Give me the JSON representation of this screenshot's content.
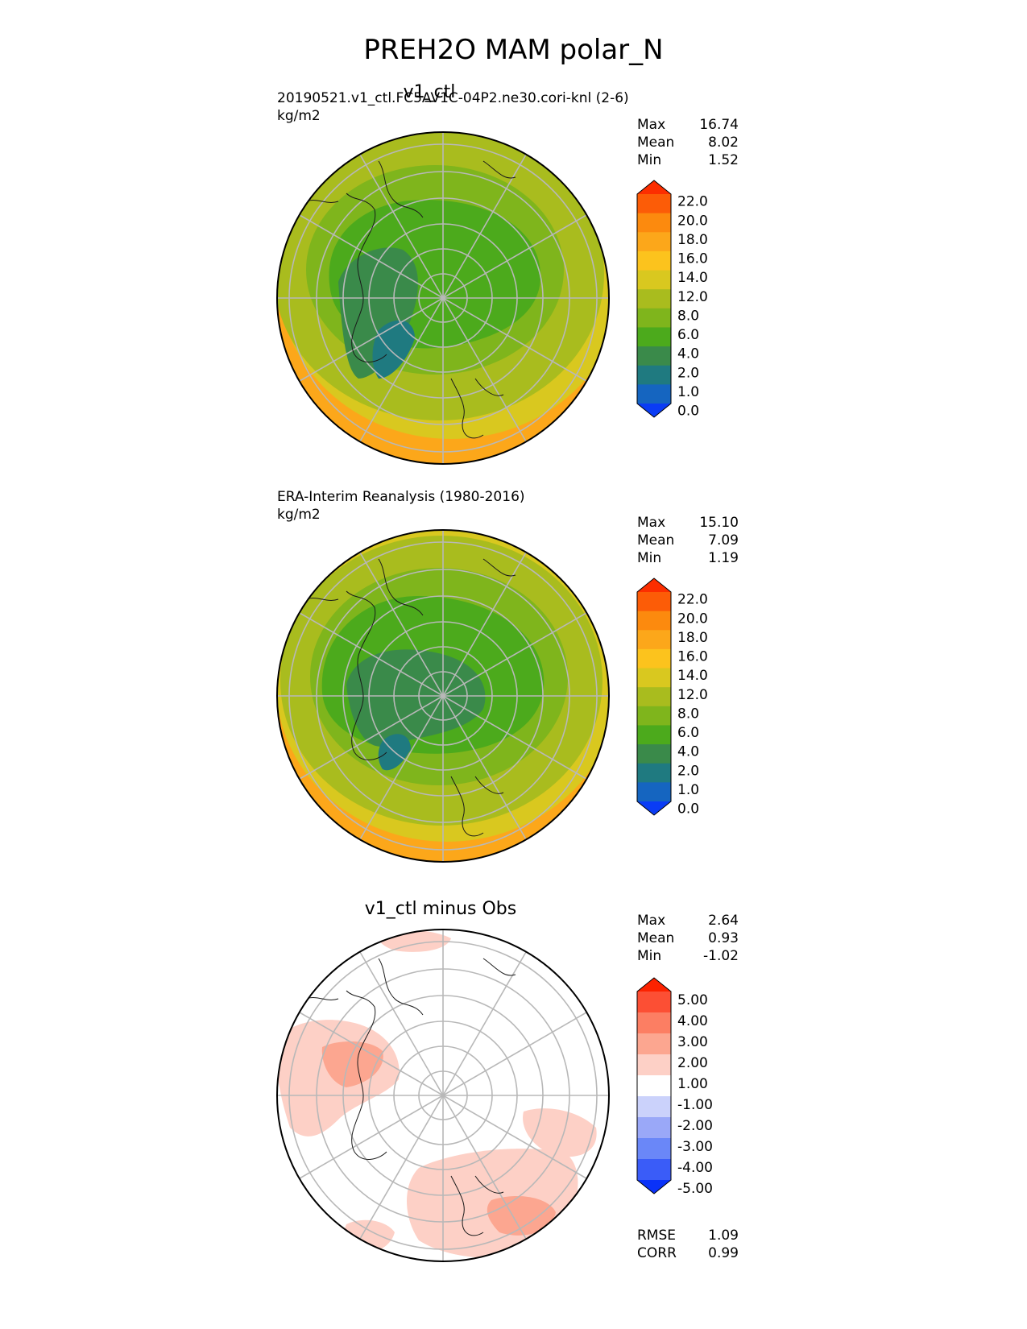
{
  "suptitle": "PREH2O MAM polar_N",
  "panels": [
    {
      "title": "v1_ctl",
      "source": "20190521.v1_ctl.FC5AV1C-04P2.ne30.cori-knl (2-6)",
      "units": "kg/m2",
      "stats": [
        {
          "label": "Max",
          "value": "16.74"
        },
        {
          "label": "Mean",
          "value": "8.02"
        },
        {
          "label": "Min",
          "value": "1.52"
        }
      ],
      "colorbar": {
        "ticks": [
          "22.0",
          "20.0",
          "18.0",
          "16.0",
          "14.0",
          "12.0",
          "8.0",
          "6.0",
          "4.0",
          "2.0",
          "1.0",
          "0.0"
        ],
        "colors": [
          "#0a3cf5",
          "#1565c0",
          "#1f7a80",
          "#3a8a4a",
          "#4caa1c",
          "#7fb51c",
          "#a9bc1e",
          "#d9c81f",
          "#fcc31d",
          "#fca71a",
          "#fc8a0e",
          "#fc5c07",
          "#fc2e00"
        ]
      }
    },
    {
      "title": "",
      "source": "ERA-Interim Reanalysis (1980-2016)",
      "units": "kg/m2",
      "stats": [
        {
          "label": "Max",
          "value": "15.10"
        },
        {
          "label": "Mean",
          "value": "7.09"
        },
        {
          "label": "Min",
          "value": "1.19"
        }
      ],
      "colorbar": {
        "ticks": [
          "22.0",
          "20.0",
          "18.0",
          "16.0",
          "14.0",
          "12.0",
          "8.0",
          "6.0",
          "4.0",
          "2.0",
          "1.0",
          "0.0"
        ],
        "colors": [
          "#0a3cf5",
          "#1565c0",
          "#1f7a80",
          "#3a8a4a",
          "#4caa1c",
          "#7fb51c",
          "#a9bc1e",
          "#d9c81f",
          "#fcc31d",
          "#fca71a",
          "#fc8a0e",
          "#fc5c07",
          "#fc2e00"
        ]
      }
    },
    {
      "title": "v1_ctl minus Obs",
      "source": "",
      "units": "",
      "stats": [
        {
          "label": "Max",
          "value": "2.64"
        },
        {
          "label": "Mean",
          "value": "0.93"
        },
        {
          "label": "Min",
          "value": "-1.02"
        }
      ],
      "colorbar": {
        "ticks": [
          "5.00",
          "4.00",
          "3.00",
          "2.00",
          "1.00",
          "-1.00",
          "-2.00",
          "-3.00",
          "-4.00",
          "-5.00"
        ],
        "colors": [
          "#0a32f8",
          "#3a5cf8",
          "#6a87f8",
          "#9aa8f8",
          "#cbd2fb",
          "#ffffff",
          "#fdd0c6",
          "#fca690",
          "#fc7e63",
          "#fc4f34",
          "#fc2200"
        ]
      },
      "extra_stats": [
        {
          "label": "RMSE",
          "value": "1.09"
        },
        {
          "label": "CORR",
          "value": "0.99"
        }
      ]
    }
  ]
}
